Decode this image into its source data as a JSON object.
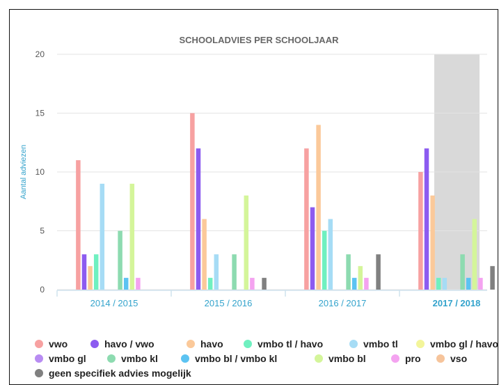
{
  "chart_data": {
    "type": "bar",
    "title": "SCHOOLADVIES PER SCHOOLJAAR",
    "ylabel": "Aantal adviezen",
    "xlabel": "",
    "ylim": [
      0,
      20
    ],
    "yticks": [
      0,
      5,
      10,
      15,
      20
    ],
    "categories": [
      "2014 / 2015",
      "2015 / 2016",
      "2016 / 2017",
      "2017 / 2018"
    ],
    "highlighted_category": "2017 / 2018",
    "legend_position": "bottom",
    "grid": true,
    "series": [
      {
        "name": "vwo",
        "color": "#f7a1a1",
        "values": [
          11,
          15,
          12,
          10
        ]
      },
      {
        "name": "havo / vwo",
        "color": "#8c5bf0",
        "values": [
          3,
          12,
          7,
          12
        ]
      },
      {
        "name": "havo",
        "color": "#fbc99a",
        "values": [
          2,
          6,
          14,
          8
        ]
      },
      {
        "name": "vmbo tl / havo",
        "color": "#6ff0c0",
        "values": [
          3,
          1,
          5,
          1
        ]
      },
      {
        "name": "vmbo tl",
        "color": "#a6dcf5",
        "values": [
          9,
          3,
          6,
          1
        ]
      },
      {
        "name": "vmbo gl / havo",
        "color": "#f3f59a",
        "values": [
          0,
          0,
          0,
          0
        ]
      },
      {
        "name": "vmbo gl",
        "color": "#b88cf2",
        "values": [
          0,
          0,
          0,
          0
        ]
      },
      {
        "name": "vmbo kl",
        "color": "#8ddbb0",
        "values": [
          5,
          3,
          3,
          3
        ]
      },
      {
        "name": "vmbo bl / vmbo kl",
        "color": "#5cc3f2",
        "values": [
          1,
          0,
          1,
          1
        ]
      },
      {
        "name": "vmbo bl",
        "color": "#d4f59a",
        "values": [
          9,
          8,
          2,
          6
        ]
      },
      {
        "name": "pro",
        "color": "#f4a3f0",
        "values": [
          1,
          1,
          1,
          1
        ]
      },
      {
        "name": "vso",
        "color": "#f6c49b",
        "values": [
          0,
          0,
          0,
          0
        ]
      },
      {
        "name": "geen specifiek advies mogelijk",
        "color": "#808080",
        "values": [
          0,
          1,
          3,
          2
        ]
      }
    ]
  }
}
